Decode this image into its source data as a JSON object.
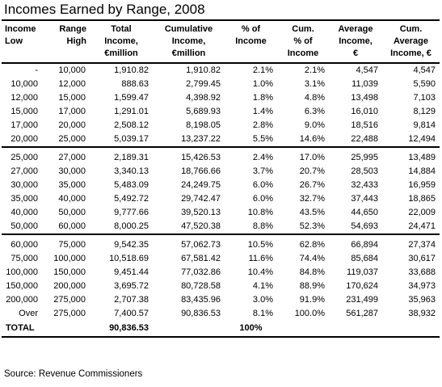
{
  "title": "Incomes Earned by Range, 2008",
  "headers": {
    "income_range_low": "Income\nLow",
    "range_high": "Range\nHigh",
    "total_income": "Total\nIncome,\n€million",
    "cumulative_income": "Cumulative\nIncome,\n€million",
    "pct_income": "% of\nIncome",
    "cum_pct_income": "Cum.\n% of\nIncome",
    "average_income": "Average\nIncome,\n€",
    "cum_average_income": "Cum.\nAverage\nIncome, €"
  },
  "rows": [
    [
      "-",
      "10,000",
      "1,910.82",
      "1,910.82",
      "2.1%",
      "2.1%",
      "4,547",
      "4,547"
    ],
    [
      "10,000",
      "12,000",
      "888.63",
      "2,799.45",
      "1.0%",
      "3.1%",
      "11,039",
      "5,590"
    ],
    [
      "12,000",
      "15,000",
      "1,599.47",
      "4,398.92",
      "1.8%",
      "4.8%",
      "13,498",
      "7,103"
    ],
    [
      "15,000",
      "17,000",
      "1,291.01",
      "5,689.93",
      "1.4%",
      "6.3%",
      "16,010",
      "8,129"
    ],
    [
      "17,000",
      "20,000",
      "2,508.12",
      "8,198.05",
      "2.8%",
      "9.0%",
      "18,516",
      "9,814"
    ],
    [
      "20,000",
      "25,000",
      "5,039.17",
      "13,237.22",
      "5.5%",
      "14.6%",
      "22,488",
      "12,494"
    ],
    [
      "25,000",
      "27,000",
      "2,189.31",
      "15,426.53",
      "2.4%",
      "17.0%",
      "25,995",
      "13,489"
    ],
    [
      "27,000",
      "30,000",
      "3,340.13",
      "18,766.66",
      "3.7%",
      "20.7%",
      "28,503",
      "14,884"
    ],
    [
      "30,000",
      "35,000",
      "5,483.09",
      "24,249.75",
      "6.0%",
      "26.7%",
      "32,433",
      "16,959"
    ],
    [
      "35,000",
      "40,000",
      "5,492.72",
      "29,742.47",
      "6.0%",
      "32.7%",
      "37,443",
      "18,865"
    ],
    [
      "40,000",
      "50,000",
      "9,777.66",
      "39,520.13",
      "10.8%",
      "43.5%",
      "44,650",
      "22,009"
    ],
    [
      "50,000",
      "60,000",
      "8,000.25",
      "47,520.38",
      "8.8%",
      "52.3%",
      "54,693",
      "24,471"
    ],
    [
      "60,000",
      "75,000",
      "9,542.35",
      "57,062.73",
      "10.5%",
      "62.8%",
      "66,894",
      "27,374"
    ],
    [
      "75,000",
      "100,000",
      "10,518.69",
      "67,581.42",
      "11.6%",
      "74.4%",
      "85,684",
      "30,617"
    ],
    [
      "100,000",
      "150,000",
      "9,451.44",
      "77,032.86",
      "10.4%",
      "84.8%",
      "119,037",
      "33,688"
    ],
    [
      "150,000",
      "200,000",
      "3,695.72",
      "80,728.58",
      "4.1%",
      "88.9%",
      "170,624",
      "34,973"
    ],
    [
      "200,000",
      "275,000",
      "2,707.38",
      "83,435.96",
      "3.0%",
      "91.9%",
      "231,499",
      "35,963"
    ],
    [
      "Over",
      "275,000",
      "7,400.57",
      "90,836.53",
      "8.1%",
      "100.0%",
      "561,287",
      "38,932"
    ]
  ],
  "total": {
    "label": "TOTAL",
    "total_income": "90,836.53",
    "pct_income": "100%"
  },
  "source": "Source: Revenue Commissioners"
}
